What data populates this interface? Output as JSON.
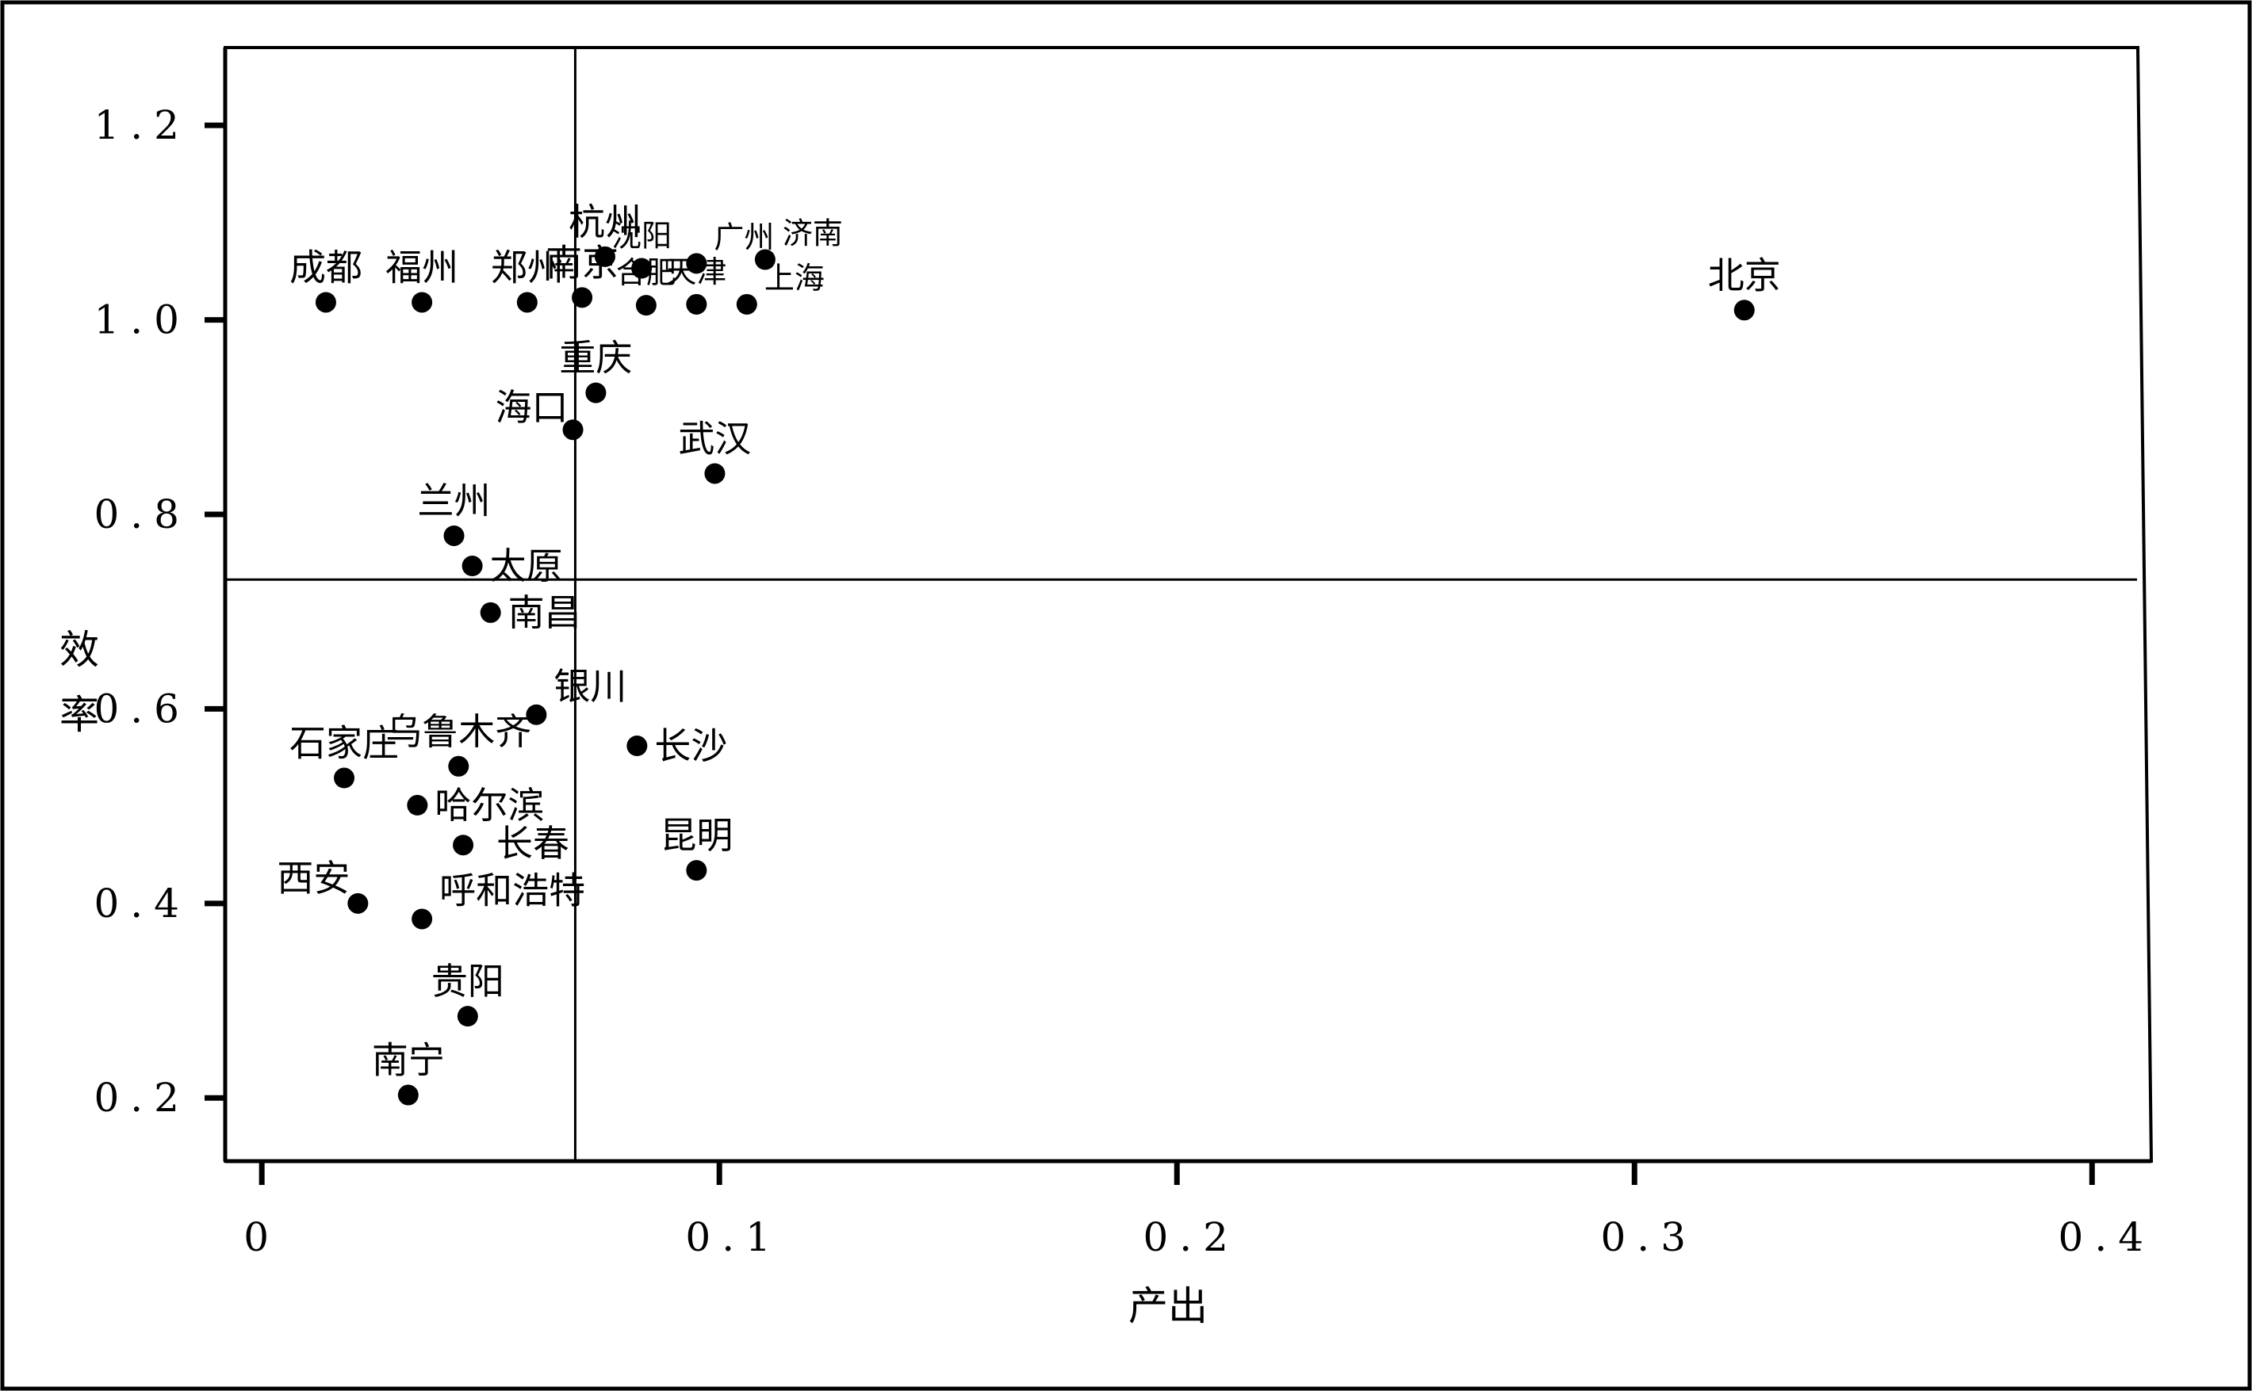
{
  "chart_data": {
    "type": "scatter",
    "xlabel": "产出",
    "ylabel": "效率",
    "xlim": [
      -0.008,
      0.41
    ],
    "ylim": [
      0.135,
      1.28
    ],
    "xticks": [
      {
        "value": 0,
        "label": "0"
      },
      {
        "value": 0.1,
        "label": "0.1"
      },
      {
        "value": 0.2,
        "label": "0.2"
      },
      {
        "value": 0.3,
        "label": "0.3"
      },
      {
        "value": 0.4,
        "label": "0.4"
      }
    ],
    "yticks": [
      {
        "value": 0.2,
        "label": "0.2"
      },
      {
        "value": 0.4,
        "label": "0.4"
      },
      {
        "value": 0.6,
        "label": "0.6"
      },
      {
        "value": 0.8,
        "label": "0.8"
      },
      {
        "value": 1.0,
        "label": "1.0"
      },
      {
        "value": 1.2,
        "label": "1.2"
      }
    ],
    "reference_lines": {
      "x": 0.0685,
      "y": 0.733
    },
    "grid": false,
    "legend": "none",
    "marker_color": "#000000",
    "points": [
      {
        "label": "北京",
        "x": 0.324,
        "y": 1.01,
        "pos": "above"
      },
      {
        "label": "成都",
        "x": 0.014,
        "y": 1.018,
        "pos": "above"
      },
      {
        "label": "福州",
        "x": 0.035,
        "y": 1.018,
        "pos": "above"
      },
      {
        "label": "郑州",
        "x": 0.058,
        "y": 1.018,
        "pos": "above"
      },
      {
        "label": "南京",
        "x": 0.07,
        "y": 1.023,
        "pos": "above"
      },
      {
        "label": "杭州",
        "x": 0.075,
        "y": 1.065,
        "pos": "above"
      },
      {
        "label": "沈阳",
        "x": 0.083,
        "y": 1.053,
        "pos": "above",
        "small": true
      },
      {
        "label": "广州",
        "x": 0.095,
        "y": 1.058,
        "pos": "above-right",
        "small": true
      },
      {
        "label": "济南",
        "x": 0.11,
        "y": 1.062,
        "pos": "above-right",
        "small": true
      },
      {
        "label": "合肥",
        "x": 0.084,
        "y": 1.015,
        "pos": "above",
        "small": true
      },
      {
        "label": "天津",
        "x": 0.095,
        "y": 1.016,
        "pos": "above",
        "small": true
      },
      {
        "label": "上海",
        "x": 0.106,
        "y": 1.016,
        "pos": "above-right",
        "small": true
      },
      {
        "label": "重庆",
        "x": 0.073,
        "y": 0.925,
        "pos": "above"
      },
      {
        "label": "海口",
        "x": 0.068,
        "y": 0.887,
        "pos": "left"
      },
      {
        "label": "武汉",
        "x": 0.099,
        "y": 0.842,
        "pos": "above"
      },
      {
        "label": "兰州",
        "x": 0.042,
        "y": 0.778,
        "pos": "above"
      },
      {
        "label": "太原",
        "x": 0.046,
        "y": 0.747,
        "pos": "right"
      },
      {
        "label": "南昌",
        "x": 0.05,
        "y": 0.699,
        "pos": "right"
      },
      {
        "label": "银川",
        "x": 0.06,
        "y": 0.594,
        "pos": "above-right"
      },
      {
        "label": "长沙",
        "x": 0.082,
        "y": 0.562,
        "pos": "right"
      },
      {
        "label": "石家庄",
        "x": 0.018,
        "y": 0.529,
        "pos": "above"
      },
      {
        "label": "乌鲁木齐",
        "x": 0.043,
        "y": 0.541,
        "pos": "above"
      },
      {
        "label": "哈尔滨",
        "x": 0.034,
        "y": 0.501,
        "pos": "right"
      },
      {
        "label": "长春",
        "x": 0.044,
        "y": 0.46,
        "pos": "right-down"
      },
      {
        "label": "昆明",
        "x": 0.095,
        "y": 0.434,
        "pos": "above"
      },
      {
        "label": "西安",
        "x": 0.021,
        "y": 0.4,
        "pos": "above-left"
      },
      {
        "label": "呼和浩特",
        "x": 0.035,
        "y": 0.384,
        "pos": "above-right"
      },
      {
        "label": "贵阳",
        "x": 0.045,
        "y": 0.284,
        "pos": "above"
      },
      {
        "label": "南宁",
        "x": 0.032,
        "y": 0.203,
        "pos": "above"
      }
    ]
  }
}
